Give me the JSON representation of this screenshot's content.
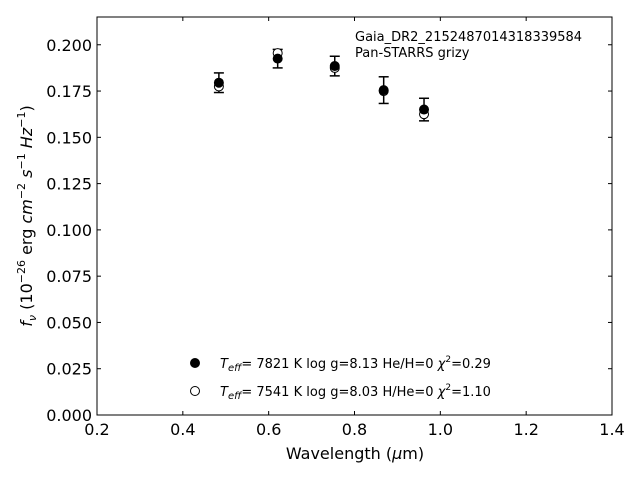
{
  "chart_data": {
    "type": "scatter",
    "xlabel": "Wavelength (μm)",
    "ylabel": "fν (10⁻²⁶ erg cm⁻² s⁻¹ Hz⁻¹)",
    "xlim": [
      0.2,
      1.4
    ],
    "ylim": [
      0.0,
      0.215
    ],
    "xticks": [
      "0.2",
      "0.4",
      "0.6",
      "0.8",
      "1.0",
      "1.2",
      "1.4"
    ],
    "yticks": [
      "0.000",
      "0.025",
      "0.050",
      "0.075",
      "0.100",
      "0.125",
      "0.150",
      "0.175",
      "0.200"
    ],
    "grid": false,
    "annotation": [
      "Gaia_DR2_2152487014318339584",
      "Pan-STARRS grizy"
    ],
    "observed": {
      "x": [
        0.484,
        0.621,
        0.754,
        0.868,
        0.962
      ],
      "y": [
        0.1795,
        0.1925,
        0.1885,
        0.1755,
        0.165
      ],
      "err": [
        0.0053,
        0.005,
        0.0053,
        0.0072,
        0.0061
      ]
    },
    "series": [
      {
        "name": "T_eff=  7821 K  log g=8.13  He/H=0  χ²=0.29",
        "marker": "filled",
        "x": [
          0.484,
          0.621,
          0.754,
          0.868,
          0.962
        ],
        "y": [
          0.1795,
          0.1925,
          0.1885,
          0.1755,
          0.165
        ]
      },
      {
        "name": "T_eff=  7541 K  log g=8.03  H/He=0  χ²=1.10",
        "marker": "open",
        "x": [
          0.484,
          0.621,
          0.754,
          0.868,
          0.962
        ],
        "y": [
          0.1775,
          0.1955,
          0.1875,
          0.175,
          0.1625
        ]
      }
    ],
    "legend": {
      "placement": "lower-center",
      "entries": [
        {
          "teff": "7821 K",
          "logg": "log g=8.13",
          "comp": "He/H=0",
          "chi2": "=0.29"
        },
        {
          "teff": "7541 K",
          "logg": "log g=8.03",
          "comp": "H/He=0",
          "chi2": "=1.10"
        }
      ]
    }
  }
}
